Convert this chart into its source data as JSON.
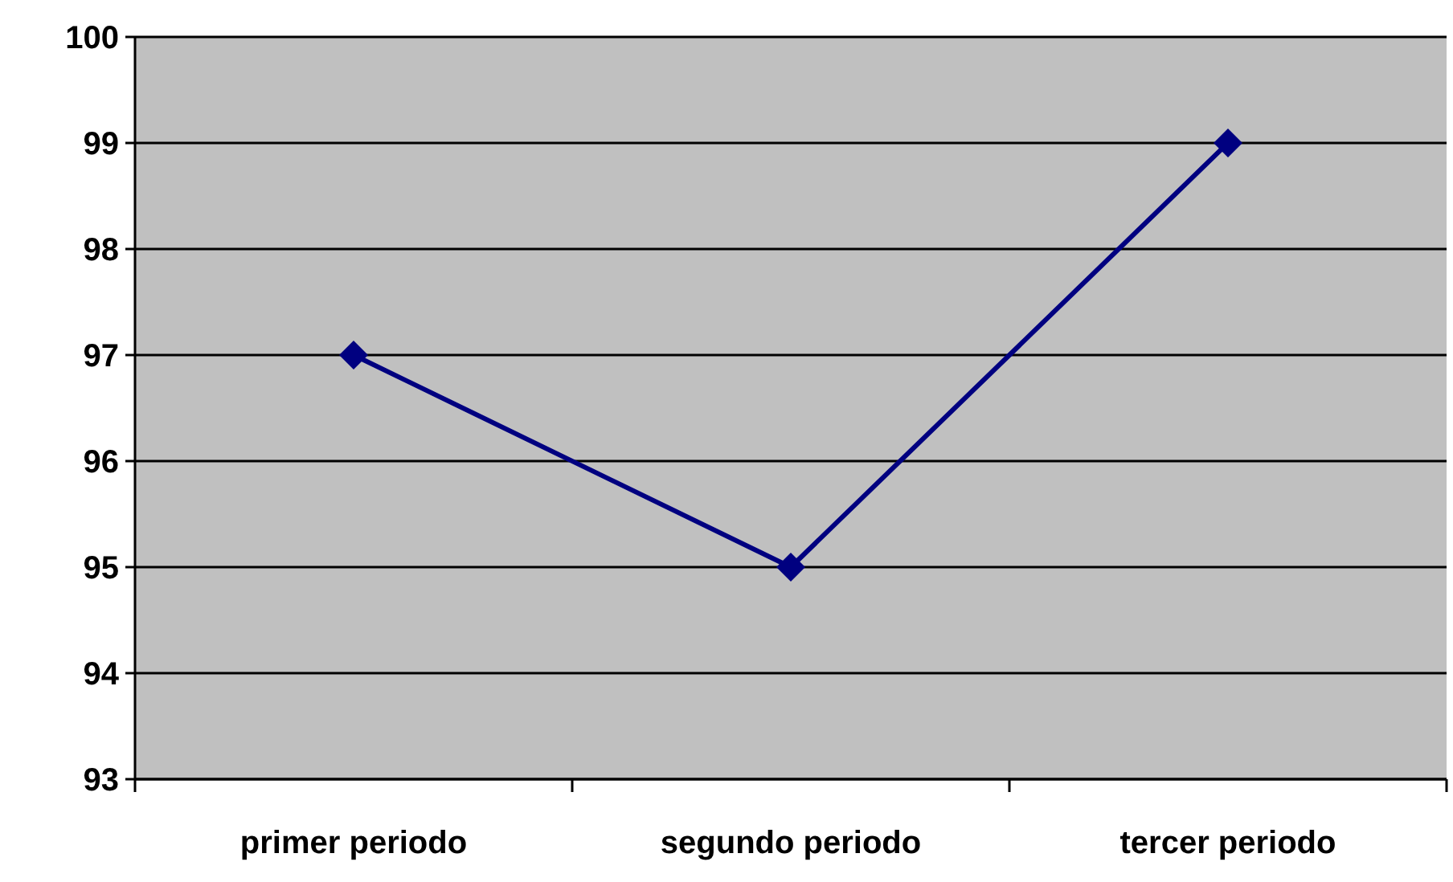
{
  "chart_data": {
    "type": "line",
    "categories": [
      "primer periodo",
      "segundo periodo",
      "tercer periodo"
    ],
    "series": [
      {
        "color": "#000080",
        "values": [
          97,
          95,
          99
        ]
      }
    ],
    "ylim": [
      93,
      100
    ],
    "yticks": [
      93,
      94,
      95,
      96,
      97,
      98,
      99,
      100
    ],
    "grid": "y",
    "marker": "diamond",
    "line_style": "solid"
  }
}
